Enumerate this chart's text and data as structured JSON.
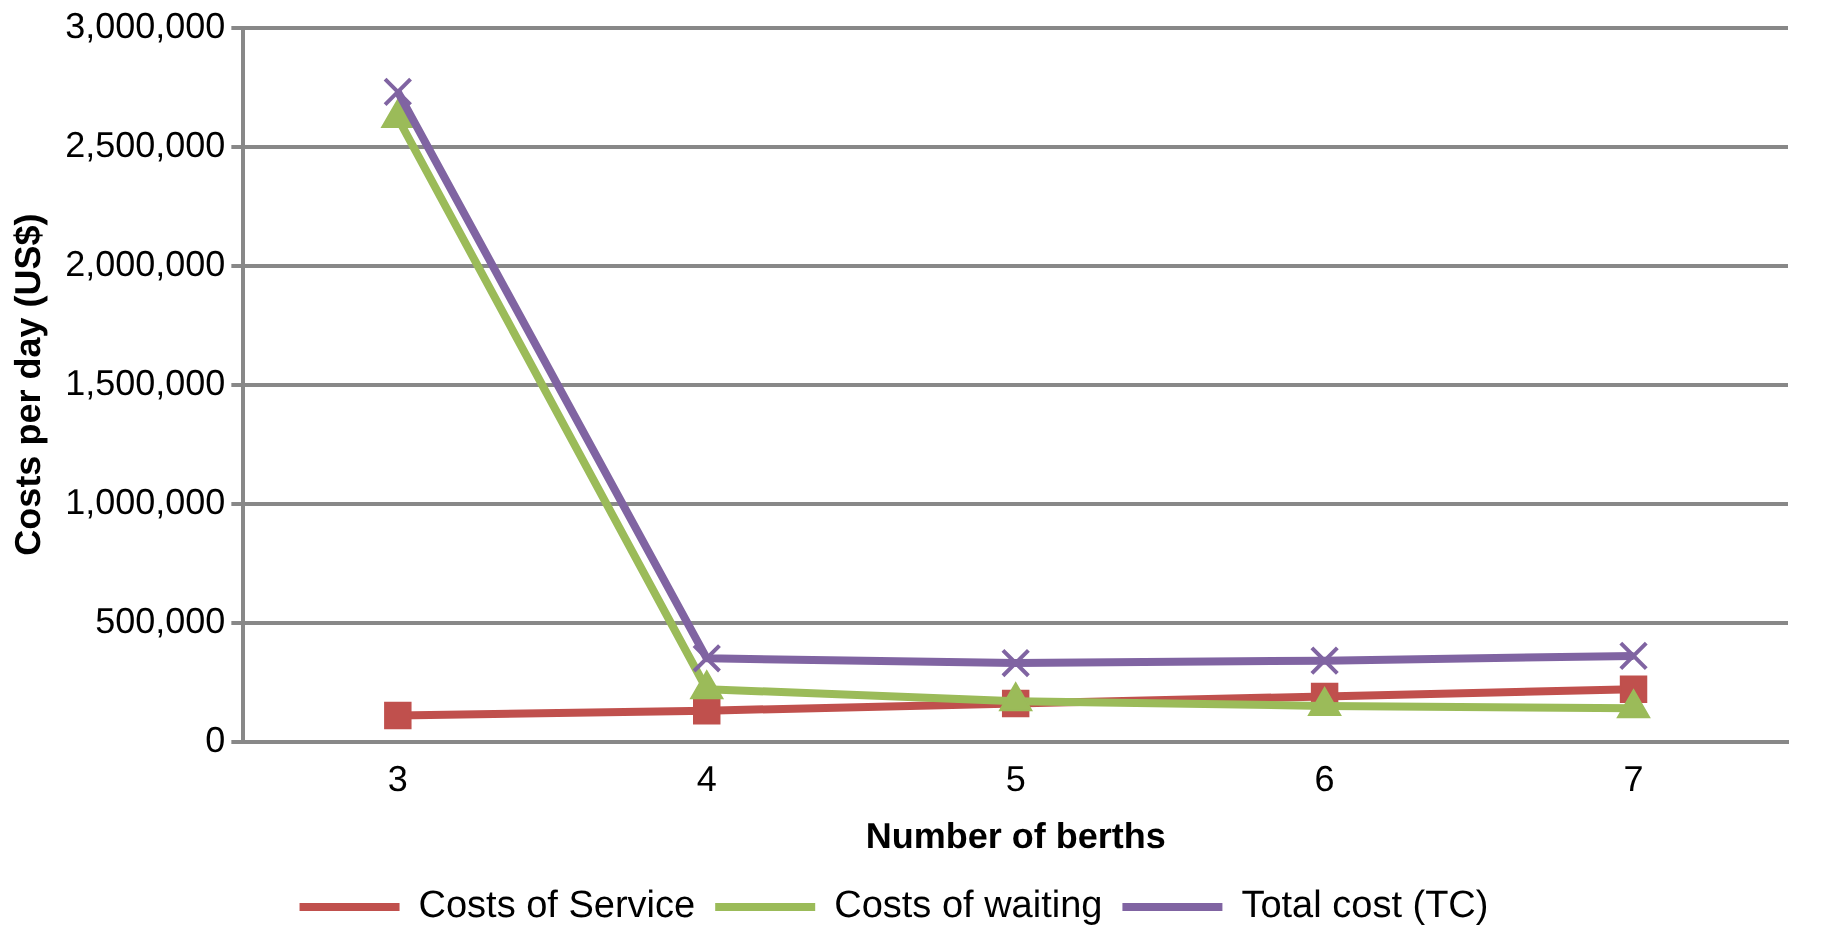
{
  "chart_data": {
    "type": "line",
    "xlabel": "Number of berths",
    "ylabel": "Costs per day (US$)",
    "categories": [
      "3",
      "4",
      "5",
      "6",
      "7"
    ],
    "series": [
      {
        "name": "Costs of Service",
        "color": "#c0504d",
        "marker": "square",
        "values": [
          110000,
          130000,
          160000,
          190000,
          220000
        ]
      },
      {
        "name": "Costs of waiting",
        "color": "#9bbb59",
        "marker": "triangle",
        "values": [
          2620000,
          220000,
          170000,
          150000,
          140000
        ]
      },
      {
        "name": "Total cost (TC)",
        "color": "#8064a2",
        "marker": "cross",
        "values": [
          2730000,
          350000,
          330000,
          340000,
          360000
        ]
      }
    ],
    "ylim": [
      0,
      3000000
    ],
    "yticks": [
      {
        "value": 0,
        "label": "0"
      },
      {
        "value": 500000,
        "label": "500,000"
      },
      {
        "value": 1000000,
        "label": "1,000,000"
      },
      {
        "value": 1500000,
        "label": "1,500,000"
      },
      {
        "value": 2000000,
        "label": "2,000,000"
      },
      {
        "value": 2500000,
        "label": "2,500,000"
      },
      {
        "value": 3000000,
        "label": "3,000,000"
      }
    ],
    "grid": "y",
    "legend": "bottom"
  }
}
